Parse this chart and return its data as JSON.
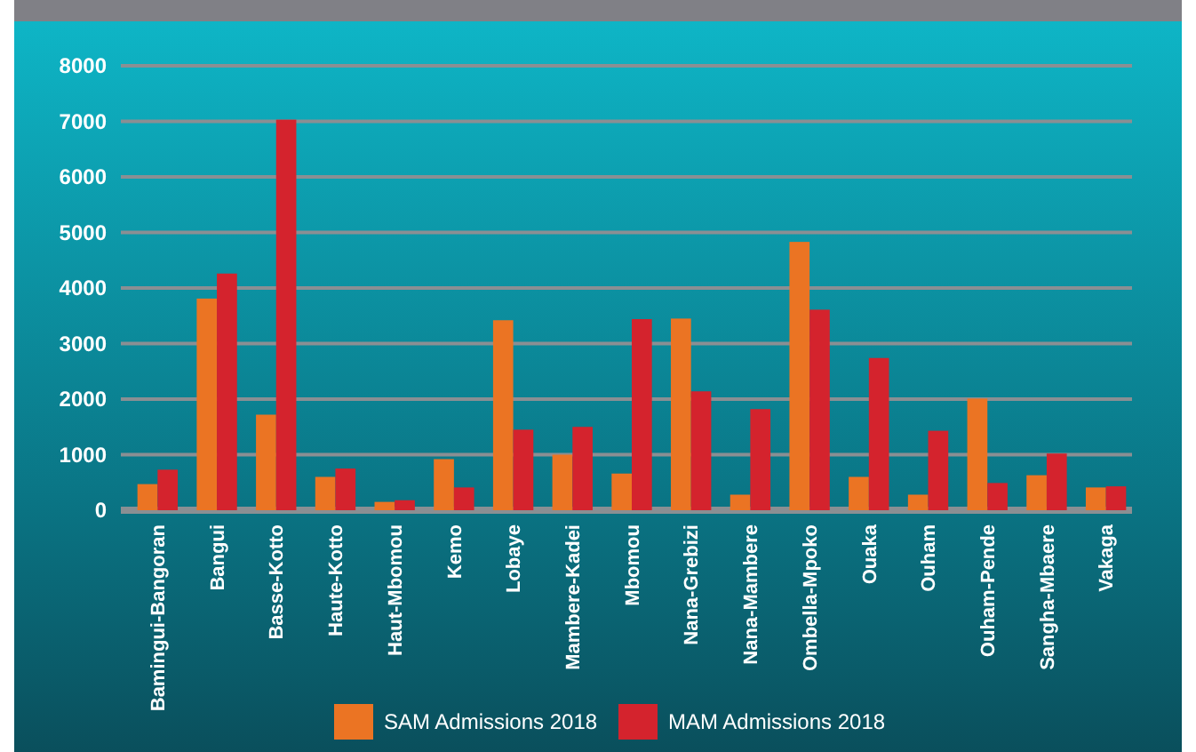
{
  "chart_data": {
    "type": "bar",
    "categories": [
      "Bamingui-Bangoran",
      "Bangui",
      "Basse-Kotto",
      "Haute-Kotto",
      "Haut-Mbomou",
      "Kemo",
      "Lobaye",
      "Mambere-Kadei",
      "Mbomou",
      "Nana-Grebizi",
      "Nana-Mambere",
      "Ombella-Mpoko",
      "Ouaka",
      "Ouham",
      "Ouham-Pende",
      "Sangha-Mbaere",
      "Vakaga"
    ],
    "series": [
      {
        "name": "SAM Admissions 2018",
        "color": "#eb7423",
        "values": [
          470,
          3810,
          1720,
          600,
          150,
          920,
          3420,
          1000,
          660,
          3450,
          280,
          4830,
          600,
          280,
          2010,
          630,
          410
        ]
      },
      {
        "name": "MAM Admissions 2018",
        "color": "#d4232d",
        "values": [
          730,
          4260,
          7030,
          750,
          180,
          410,
          1450,
          1500,
          3440,
          2140,
          1820,
          3610,
          2740,
          1430,
          490,
          1020,
          430
        ]
      }
    ],
    "ylim": [
      0,
      8000
    ],
    "yticks": [
      0,
      1000,
      2000,
      3000,
      4000,
      5000,
      6000,
      7000,
      8000
    ],
    "grid": "y",
    "legend": "bottom"
  }
}
